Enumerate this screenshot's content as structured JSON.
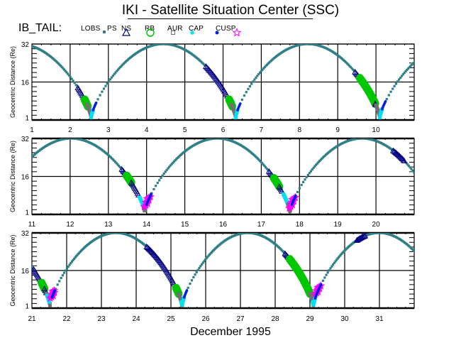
{
  "header": {
    "title": "IKI - Satellite Situation Center (SSC)",
    "satellite_label": "IB_TAIL:"
  },
  "legend": [
    {
      "label": "LOBS",
      "symbol": "filled-square",
      "color": "#2e7f87"
    },
    {
      "label": "PS",
      "symbol": "triangle-open",
      "color": "#000080"
    },
    {
      "label": "NS",
      "symbol": "circle-open",
      "color": "#00c800"
    },
    {
      "label": "RB",
      "symbol": "square-open",
      "color": "#707070"
    },
    {
      "label": "AUR",
      "symbol": "asterisk",
      "color": "#00e0f0"
    },
    {
      "label": "CAP",
      "symbol": "filled-circle",
      "color": "#0020e0"
    },
    {
      "label": "CUSP",
      "symbol": "star-open",
      "color": "#ff00ff"
    }
  ],
  "footer": {
    "month_label": "December    1995"
  },
  "chart_data": {
    "type": "scatter",
    "title": "IKI - Satellite Situation Center (SSC)",
    "satellite": "IB_TAIL",
    "xlabel": "December 1995",
    "ylabel": "Geocentric Distance (Re)",
    "y_ticks": [
      1,
      16,
      32
    ],
    "ylim": [
      0,
      32
    ],
    "grid": true,
    "legend_position": "top-left",
    "orbit": {
      "perigee_days": [
        2.55,
        6.33,
        10.1,
        13.95,
        17.75,
        21.52,
        25.32,
        29.1
      ],
      "apogee_days": [
        0.7,
        4.45,
        8.22,
        12.05,
        15.83,
        19.63,
        23.43,
        27.22,
        31.02
      ],
      "apogee_distance_re": 32,
      "perigee_distance_re": 1
    },
    "panels": [
      {
        "x_range": [
          1,
          11
        ],
        "x_ticks": [
          1,
          2,
          3,
          4,
          5,
          6,
          7,
          8,
          9,
          10
        ],
        "regions": [
          {
            "type": "PS",
            "from": 2.2,
            "to": 2.4
          },
          {
            "type": "NS",
            "from": 2.38,
            "to": 2.46
          },
          {
            "type": "RB",
            "from": 2.44,
            "to": 2.55
          },
          {
            "type": "AUR",
            "from": 2.55,
            "to": 2.6
          },
          {
            "type": "CAP",
            "from": 2.6,
            "to": 2.68
          },
          {
            "type": "PS",
            "from": 5.55,
            "to": 6.18
          },
          {
            "type": "NS",
            "from": 6.16,
            "to": 6.24
          },
          {
            "type": "RB",
            "from": 6.22,
            "to": 6.33
          },
          {
            "type": "AUR",
            "from": 6.33,
            "to": 6.38
          },
          {
            "type": "CAP",
            "from": 6.38,
            "to": 6.45
          },
          {
            "type": "PS",
            "from": 9.45,
            "to": 9.58
          },
          {
            "type": "NS",
            "from": 9.58,
            "to": 9.98
          },
          {
            "type": "PS",
            "from": 9.98,
            "to": 10.0
          },
          {
            "type": "RB",
            "from": 10.0,
            "to": 10.1
          },
          {
            "type": "AUR",
            "from": 10.1,
            "to": 10.16
          },
          {
            "type": "CAP",
            "from": 10.16,
            "to": 10.25
          }
        ]
      },
      {
        "x_range": [
          11,
          21
        ],
        "x_ticks": [
          11,
          12,
          13,
          14,
          15,
          16,
          17,
          18,
          19,
          20
        ],
        "regions": [
          {
            "type": "PS",
            "from": 13.35,
            "to": 13.48
          },
          {
            "type": "NS",
            "from": 13.48,
            "to": 13.6
          },
          {
            "type": "PS",
            "from": 13.6,
            "to": 13.8
          },
          {
            "type": "AUR",
            "from": 13.82,
            "to": 13.92
          },
          {
            "type": "RB",
            "from": 13.92,
            "to": 13.97
          },
          {
            "type": "CUSP",
            "from": 13.97,
            "to": 14.07
          },
          {
            "type": "CAP",
            "from": 14.0,
            "to": 14.12
          },
          {
            "type": "PS",
            "from": 17.2,
            "to": 17.33
          },
          {
            "type": "NS",
            "from": 17.33,
            "to": 17.47
          },
          {
            "type": "PS",
            "from": 17.47,
            "to": 17.55
          },
          {
            "type": "AUR",
            "from": 17.58,
            "to": 17.7
          },
          {
            "type": "RB",
            "from": 17.7,
            "to": 17.76
          },
          {
            "type": "CUSP",
            "from": 17.76,
            "to": 17.86
          },
          {
            "type": "CAP",
            "from": 17.8,
            "to": 17.9
          },
          {
            "type": "PS",
            "from": 20.45,
            "to": 20.75
          }
        ]
      },
      {
        "x_range": [
          21,
          32
        ],
        "x_ticks": [
          21,
          22,
          23,
          24,
          25,
          26,
          27,
          28,
          29,
          30,
          31
        ],
        "regions": [
          {
            "type": "PS",
            "from": 21.05,
            "to": 21.3
          },
          {
            "type": "NS",
            "from": 21.28,
            "to": 21.36
          },
          {
            "type": "PS",
            "from": 21.36,
            "to": 21.42
          },
          {
            "type": "RB",
            "from": 21.42,
            "to": 21.52
          },
          {
            "type": "AUR",
            "from": 21.44,
            "to": 21.5
          },
          {
            "type": "CUSP",
            "from": 21.56,
            "to": 21.64
          },
          {
            "type": "CAP",
            "from": 21.58,
            "to": 21.66
          },
          {
            "type": "PS",
            "from": 24.3,
            "to": 25.15
          },
          {
            "type": "NS",
            "from": 25.15,
            "to": 25.22
          },
          {
            "type": "RB",
            "from": 25.22,
            "to": 25.32
          },
          {
            "type": "AUR",
            "from": 25.3,
            "to": 25.38
          },
          {
            "type": "CAP",
            "from": 25.38,
            "to": 25.46
          },
          {
            "type": "PS",
            "from": 28.28,
            "to": 28.42
          },
          {
            "type": "NS",
            "from": 28.42,
            "to": 29.0
          },
          {
            "type": "RB",
            "from": 29.0,
            "to": 29.1
          },
          {
            "type": "AUR",
            "from": 29.08,
            "to": 29.15
          },
          {
            "type": "CUSP",
            "from": 29.18,
            "to": 29.28
          },
          {
            "type": "CAP",
            "from": 29.15,
            "to": 29.32
          },
          {
            "type": "PS",
            "from": 30.35,
            "to": 30.6
          }
        ]
      }
    ]
  }
}
